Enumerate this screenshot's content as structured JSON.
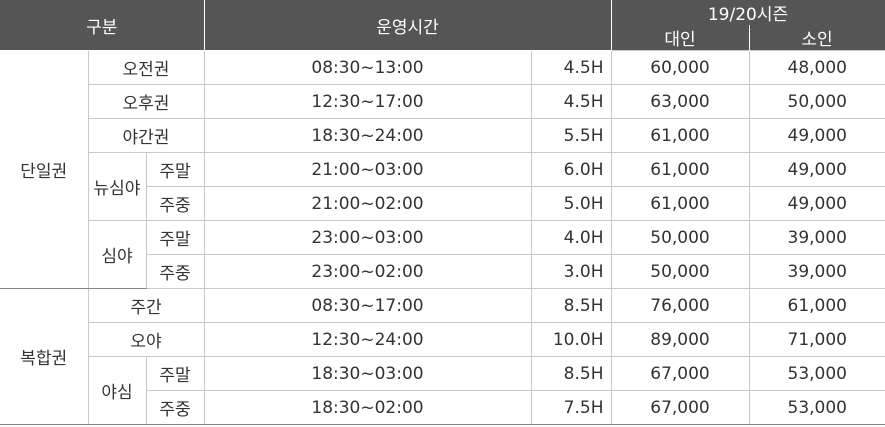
{
  "header": {
    "category": "구분",
    "hours": "운영시간",
    "season": "19/20시즌",
    "adult": "대인",
    "child": "소인"
  },
  "groups": [
    {
      "label": "단일권"
    },
    {
      "label": "복합권"
    }
  ],
  "subgroups": [
    {
      "label": "뉴심야"
    },
    {
      "label": "심야"
    },
    {
      "label": "야심"
    }
  ],
  "rows": [
    {
      "pass": "오전권",
      "time": "08:30~13:00",
      "duration": "4.5H",
      "adult": "60,000",
      "child": "48,000"
    },
    {
      "pass": "오후권",
      "time": "12:30~17:00",
      "duration": "4.5H",
      "adult": "63,000",
      "child": "50,000"
    },
    {
      "pass": "야간권",
      "time": "18:30~24:00",
      "duration": "5.5H",
      "adult": "61,000",
      "child": "49,000"
    },
    {
      "pass": "주말",
      "time": "21:00~03:00",
      "duration": "6.0H",
      "adult": "61,000",
      "child": "49,000"
    },
    {
      "pass": "주중",
      "time": "21:00~02:00",
      "duration": "5.0H",
      "adult": "61,000",
      "child": "49,000"
    },
    {
      "pass": "주말",
      "time": "23:00~03:00",
      "duration": "4.0H",
      "adult": "50,000",
      "child": "39,000"
    },
    {
      "pass": "주중",
      "time": "23:00~02:00",
      "duration": "3.0H",
      "adult": "50,000",
      "child": "39,000"
    },
    {
      "pass": "주간",
      "time": "08:30~17:00",
      "duration": "8.5H",
      "adult": "76,000",
      "child": "61,000"
    },
    {
      "pass": "오야",
      "time": "12:30~24:00",
      "duration": "10.0H",
      "adult": "89,000",
      "child": "71,000"
    },
    {
      "pass": "주말",
      "time": "18:30~03:00",
      "duration": "8.5H",
      "adult": "67,000",
      "child": "53,000"
    },
    {
      "pass": "주중",
      "time": "18:30~02:00",
      "duration": "7.5H",
      "adult": "67,000",
      "child": "53,000"
    }
  ]
}
